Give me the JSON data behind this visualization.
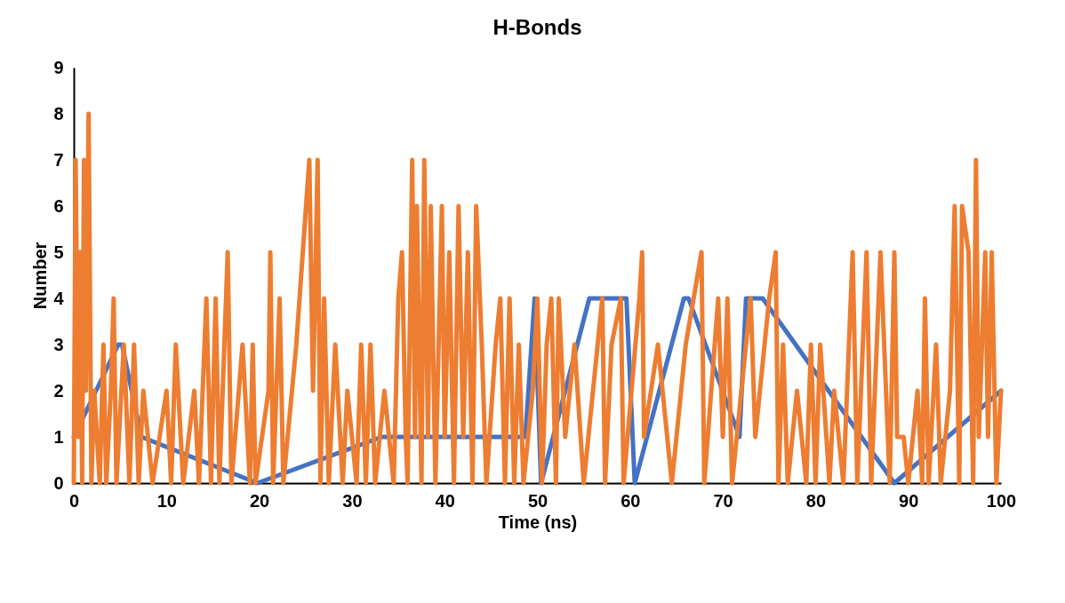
{
  "chart_data": {
    "type": "line",
    "title": "H-Bonds",
    "xlabel": "Time (ns)",
    "ylabel": "Number",
    "xlim": [
      0,
      100
    ],
    "xticks": [
      0,
      10,
      20,
      30,
      40,
      50,
      60,
      70,
      80,
      90,
      100
    ],
    "ylim": [
      0,
      9
    ],
    "yticks": [
      0,
      1,
      2,
      3,
      4,
      5,
      6,
      7,
      8,
      9
    ],
    "grid": false,
    "marker": "none",
    "line_style": "solid",
    "series": [
      {
        "color": "#4472c4",
        "x": [
          0,
          4.8,
          5.2,
          7.3,
          19.8,
          33.2,
          48.7,
          49.7,
          50.4,
          55.6,
          56.2,
          59.6,
          60.5,
          65.8,
          66.3,
          71.8,
          72.5,
          74.3,
          88.5,
          100
        ],
        "values": [
          1,
          3,
          3,
          1,
          0,
          1,
          1,
          4,
          0,
          4,
          4,
          4,
          0,
          4,
          4,
          1,
          4,
          4,
          0,
          2
        ]
      },
      {
        "color": "#ed7d31",
        "x": [
          0,
          0.2,
          0.5,
          0.7,
          0.9,
          1.1,
          1.3,
          1.6,
          1.9,
          2.2,
          2.8,
          3.2,
          3.5,
          4.0,
          4.3,
          4.6,
          5.4,
          6.0,
          6.5,
          7.0,
          7.5,
          8.5,
          10.0,
          10.5,
          11.0,
          11.8,
          13.0,
          13.5,
          14.3,
          14.8,
          15.3,
          15.7,
          16.6,
          17.0,
          18.2,
          19.0,
          19.3,
          19.6,
          21.0,
          21.2,
          21.5,
          22.2,
          22.6,
          24.0,
          25.4,
          25.8,
          26.3,
          26.6,
          27.0,
          27.5,
          28.2,
          29.0,
          29.5,
          30.5,
          31.0,
          31.5,
          32.0,
          32.5,
          33.5,
          34.5,
          35.0,
          35.4,
          35.8,
          36.0,
          36.5,
          36.8,
          37.0,
          37.5,
          37.8,
          38.2,
          38.5,
          39.0,
          39.7,
          40.0,
          40.5,
          41.0,
          41.5,
          42.0,
          42.5,
          43.0,
          43.4,
          44.0,
          44.5,
          45.5,
          46.0,
          46.5,
          47.0,
          47.5,
          48.0,
          48.5,
          49.5,
          50.0,
          50.5,
          51.0,
          51.5,
          52.0,
          52.3,
          53.0,
          54.0,
          55.0,
          57.0,
          57.3,
          58.0,
          59.0,
          59.3,
          61.0,
          61.3,
          61.5,
          63.0,
          64.5,
          66.0,
          67.7,
          68.0,
          69.5,
          70.0,
          70.5,
          71.0,
          73.0,
          73.5,
          75.0,
          75.7,
          76.0,
          76.5,
          77.0,
          78.0,
          79.0,
          79.5,
          80.0,
          80.5,
          81.5,
          82.0,
          83.0,
          84.0,
          84.5,
          85.5,
          86.0,
          87.0,
          88.0,
          88.5,
          88.8,
          89.5,
          90.0,
          91.0,
          91.5,
          91.8,
          92.2,
          93.0,
          93.5,
          94.5,
          95.0,
          95.5,
          95.8,
          96.5,
          97.0,
          97.3,
          97.6,
          98.3,
          98.6,
          99.0,
          99.5,
          100.0
        ],
        "values": [
          0,
          7,
          1,
          5,
          0,
          7,
          2,
          8,
          0,
          2,
          0,
          3,
          0,
          2,
          4,
          0,
          3,
          0,
          3,
          0,
          2,
          0,
          2,
          0,
          3,
          0,
          2,
          0,
          4,
          0,
          4,
          0,
          5,
          0,
          3,
          0,
          3,
          0,
          2,
          5,
          0,
          4,
          0,
          3,
          7,
          2,
          7,
          0,
          4,
          0,
          3,
          0,
          2,
          0,
          3,
          0,
          3,
          0,
          2,
          0,
          4,
          5,
          1,
          0,
          7,
          1,
          6,
          0,
          7,
          1,
          6,
          0,
          6,
          1,
          5,
          0,
          6,
          1,
          5,
          0,
          6,
          3,
          0,
          3,
          4,
          0,
          4,
          0,
          3,
          0,
          2,
          4,
          0,
          3,
          4,
          0,
          4,
          1,
          3,
          0,
          4,
          0,
          3,
          4,
          0,
          4,
          5,
          1,
          3,
          0,
          3,
          5,
          0,
          4,
          1,
          4,
          0,
          4,
          1,
          4,
          5,
          0,
          3,
          0,
          2,
          0,
          3,
          0,
          3,
          0,
          2,
          0,
          5,
          0,
          5,
          0,
          5,
          0,
          5,
          1,
          1,
          0,
          2,
          0,
          4,
          0,
          3,
          0,
          2,
          6,
          0,
          6,
          5,
          0,
          7,
          1,
          5,
          1,
          5,
          0,
          2
        ]
      }
    ]
  }
}
